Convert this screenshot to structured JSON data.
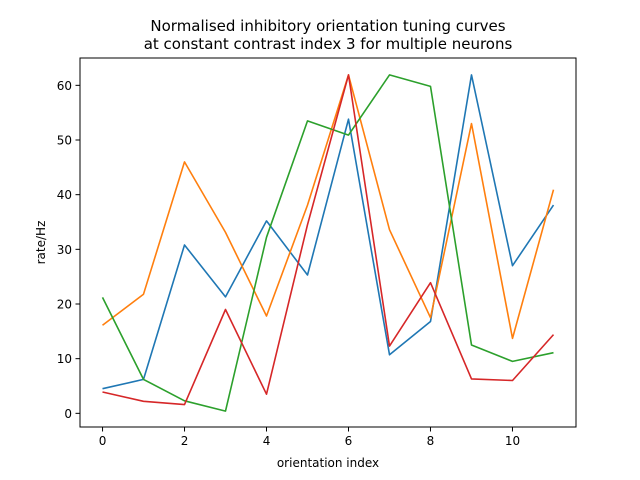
{
  "chart_data": {
    "type": "line",
    "title_lines": [
      "Normalised inhibitory orientation tuning curves",
      "at constant contrast index 3 for multiple neurons"
    ],
    "xlabel": "orientation index",
    "ylabel": "rate/Hz",
    "xlim": [
      -0.55,
      11.55
    ],
    "ylim": [
      -2.5,
      65
    ],
    "xticks": [
      0,
      2,
      4,
      6,
      8,
      10
    ],
    "yticks": [
      0,
      10,
      20,
      30,
      40,
      50,
      60
    ],
    "grid": false,
    "x": [
      0,
      1,
      2,
      3,
      4,
      5,
      6,
      7,
      8,
      9,
      10,
      11
    ],
    "series": [
      {
        "color": "#1f77b4",
        "values": [
          4.5,
          6.2,
          30.8,
          21.3,
          35.2,
          25.3,
          53.8,
          10.7,
          16.8,
          61.9,
          27.0,
          38.1
        ]
      },
      {
        "color": "#ff7f0e",
        "values": [
          16.1,
          21.8,
          46.0,
          33.1,
          17.8,
          38.1,
          61.9,
          33.6,
          17.5,
          53.0,
          13.7,
          40.9
        ]
      },
      {
        "color": "#2ca02c",
        "values": [
          21.2,
          6.2,
          2.3,
          0.4,
          32.2,
          53.5,
          50.9,
          61.9,
          59.8,
          12.5,
          9.5,
          11.1
        ]
      },
      {
        "color": "#d62728",
        "values": [
          3.9,
          2.2,
          1.6,
          19.0,
          3.5,
          34.5,
          61.9,
          12.3,
          23.9,
          6.3,
          6.0,
          14.4
        ]
      }
    ]
  }
}
